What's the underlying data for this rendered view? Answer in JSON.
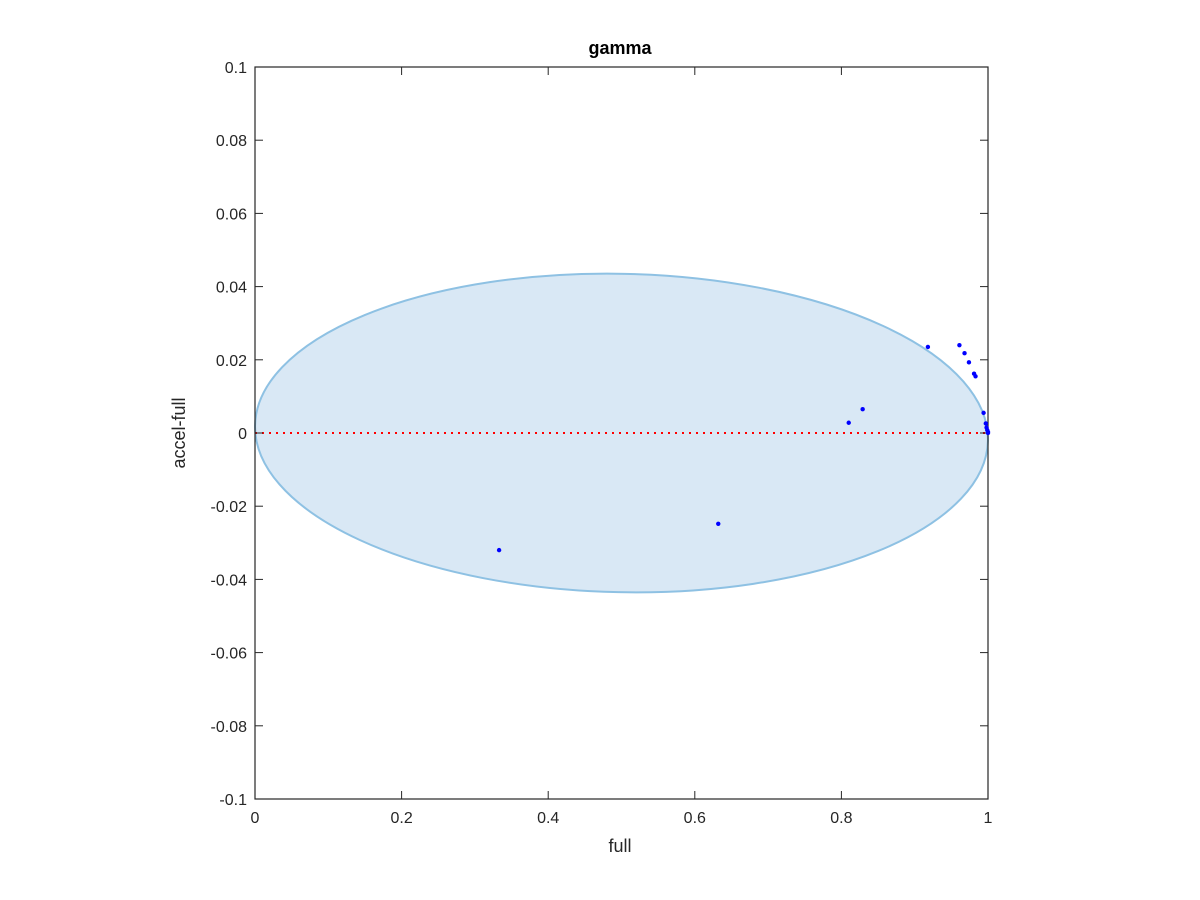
{
  "chart_data": {
    "type": "scatter",
    "title": "gamma",
    "xlabel": "full",
    "ylabel": "accel-full",
    "xlim": [
      0,
      1
    ],
    "ylim": [
      -0.1,
      0.1
    ],
    "x_ticks": [
      0,
      0.2,
      0.4,
      0.6,
      0.8,
      1
    ],
    "x_tick_labels": [
      "0",
      "0.2",
      "0.4",
      "0.6",
      "0.8",
      "1"
    ],
    "y_ticks": [
      -0.1,
      -0.08,
      -0.06,
      -0.04,
      -0.02,
      0,
      0.02,
      0.04,
      0.06,
      0.08,
      0.1
    ],
    "y_tick_labels": [
      "-0.1",
      "-0.08",
      "-0.06",
      "-0.04",
      "-0.02",
      "0",
      "0.02",
      "0.04",
      "0.06",
      "0.08",
      "0.1"
    ],
    "grid": false,
    "reference_line": {
      "y": 0,
      "style": "dotted",
      "color": "#ff0000"
    },
    "ellipse": {
      "center": [
        0.5,
        0
      ],
      "semi_axis_x": 0.5,
      "semi_axis_y": 0.0435,
      "tilt": -0.012,
      "fill": "#d9e8f5",
      "stroke": "#8ec1e3"
    },
    "points": {
      "color": "#0000ff",
      "x": [
        0.333,
        0.632,
        0.81,
        0.829,
        0.918,
        0.961,
        0.968,
        0.974,
        0.981,
        0.983,
        0.994,
        0.997,
        0.998,
        0.999,
        1.0,
        1.0
      ],
      "y": [
        -0.032,
        -0.0248,
        0.0028,
        0.0065,
        0.0235,
        0.024,
        0.0218,
        0.0193,
        0.0162,
        0.0155,
        0.0055,
        0.0026,
        0.0015,
        0.0008,
        0.0003,
        0.0
      ]
    }
  }
}
